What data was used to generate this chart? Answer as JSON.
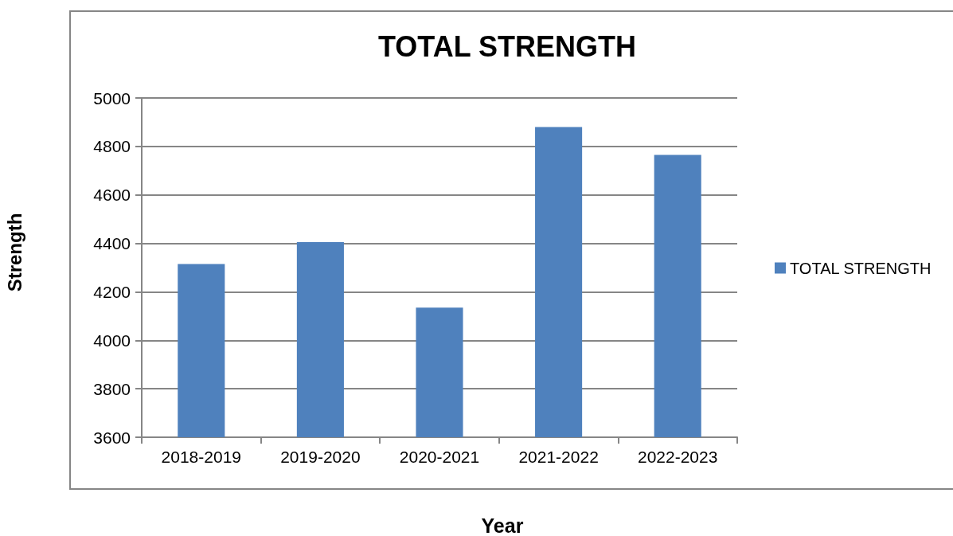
{
  "chart_data": {
    "type": "bar",
    "title": "TOTAL STRENGTH",
    "xlabel": "Year",
    "ylabel": "Strength",
    "categories": [
      "2018-2019",
      "2019-2020",
      "2020-2021",
      "2021-2022",
      "2022-2023"
    ],
    "series": [
      {
        "name": "TOTAL STRENGTH",
        "color": "#4f81bd",
        "values": [
          4315,
          4405,
          4135,
          4880,
          4765
        ]
      }
    ],
    "ylim": [
      3600,
      5000
    ],
    "yticks": [
      3600,
      3800,
      4000,
      4200,
      4400,
      4600,
      4800,
      5000
    ],
    "grid": "y",
    "legend": "right"
  }
}
